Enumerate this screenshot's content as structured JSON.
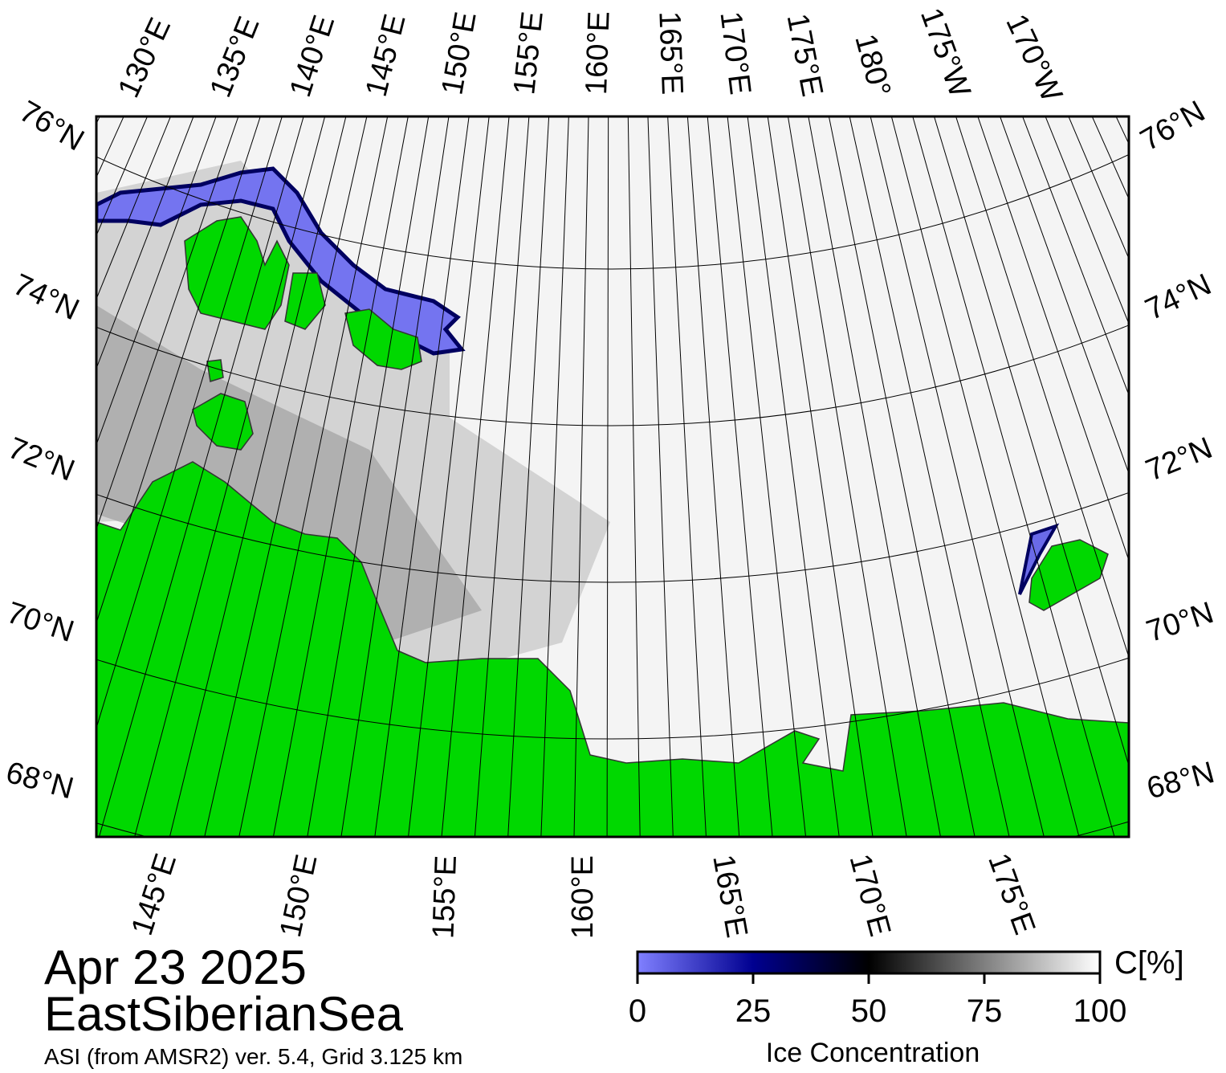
{
  "map": {
    "top_labels": [
      "130°E",
      "135°E",
      "140°E",
      "145°E",
      "150°E",
      "155°E",
      "160°E",
      "165°E",
      "170°E",
      "175°E",
      "180°",
      "175°W",
      "170°W"
    ],
    "left_labels": [
      "76°N",
      "74°N",
      "72°N",
      "70°N",
      "68°N"
    ],
    "right_labels": [
      "76°N",
      "74°N",
      "72°N",
      "70°N",
      "68°N"
    ],
    "bottom_labels": [
      "145°E",
      "150°E",
      "155°E",
      "160°E",
      "165°E",
      "170°E",
      "175°E"
    ]
  },
  "date": "Apr 23 2025",
  "region": "EastSiberianSea",
  "source": "ASI (from AMSR2) ver. 5.4,  Grid 3.125 km",
  "colorbar": {
    "label": "Ice Concentration",
    "unit": "C[%]",
    "range": [
      0,
      100
    ],
    "ticks": [
      0,
      25,
      50,
      75,
      100
    ]
  }
}
